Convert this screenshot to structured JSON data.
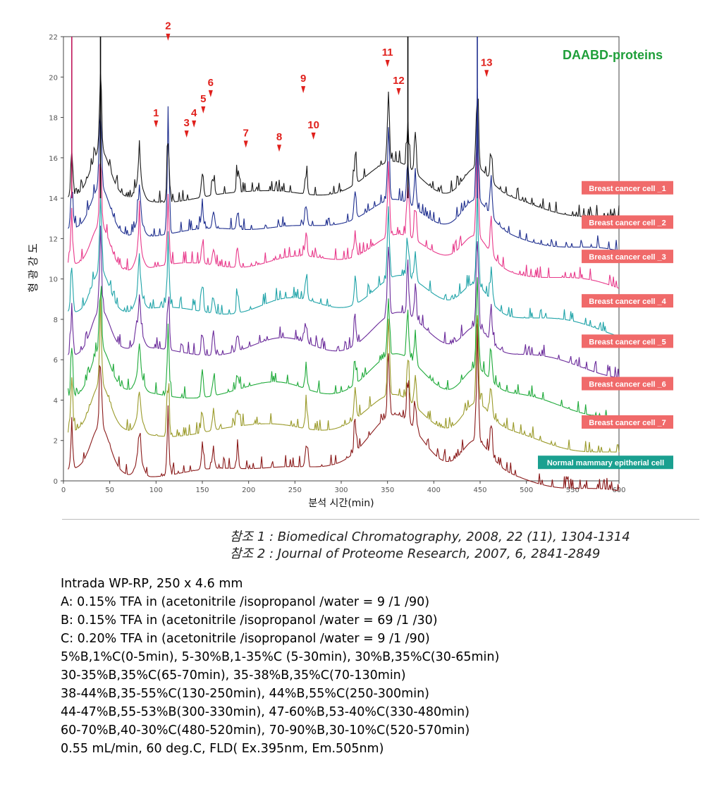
{
  "chart_data": {
    "type": "line",
    "title": "DAABD-proteins",
    "title_color": "#1f9f3a",
    "xlabel": "분석 시간(min)",
    "ylabel": "형 광 강 도",
    "xlim": [
      0,
      600
    ],
    "ylim": [
      0,
      22
    ],
    "x_ticks": [
      0,
      50,
      100,
      150,
      200,
      250,
      300,
      350,
      400,
      450,
      500,
      550,
      600
    ],
    "y_ticks": [
      0,
      2,
      4,
      6,
      8,
      10,
      12,
      14,
      16,
      18,
      20,
      22
    ],
    "grid": false,
    "series": [
      {
        "name": "Breast cancer cell _1",
        "color": "#1a1a1a",
        "baseline": 14.0,
        "label_color": "#f06a6a"
      },
      {
        "name": "Breast cancer cell _2",
        "color": "#1f2f8f",
        "baseline": 12.3,
        "label_color": "#f06a6a"
      },
      {
        "name": "Breast cancer cell _3",
        "color": "#e8388a",
        "baseline": 10.6,
        "label_color": "#f06a6a"
      },
      {
        "name": "Breast cancer cell _4",
        "color": "#1fa3a8",
        "baseline": 8.4,
        "label_color": "#f06a6a"
      },
      {
        "name": "Breast cancer cell _5",
        "color": "#6a2a9a",
        "baseline": 6.4,
        "label_color": "#f06a6a"
      },
      {
        "name": "Breast cancer cell _6",
        "color": "#1faa3a",
        "baseline": 4.3,
        "label_color": "#f06a6a"
      },
      {
        "name": "Breast cancer cell _7",
        "color": "#9a9a2a",
        "baseline": 2.4,
        "label_color": "#f06a6a"
      },
      {
        "name": "Normal mammary epitherial cell",
        "color": "#8a1a1a",
        "baseline": 0.4,
        "label_color": "#1aa090"
      }
    ],
    "peaks": [
      9,
      40,
      82,
      113,
      150,
      162,
      188,
      262,
      315,
      351,
      372,
      380,
      447,
      462
    ],
    "annotations": [
      {
        "label": "1",
        "x": 100,
        "y": 17.5
      },
      {
        "label": "2",
        "x": 113,
        "y": 21.8
      },
      {
        "label": "3",
        "x": 133,
        "y": 17.0
      },
      {
        "label": "4",
        "x": 141,
        "y": 17.5
      },
      {
        "label": "5",
        "x": 151,
        "y": 18.2
      },
      {
        "label": "6",
        "x": 159,
        "y": 19.0
      },
      {
        "label": "7",
        "x": 197,
        "y": 16.5
      },
      {
        "label": "8",
        "x": 233,
        "y": 16.3
      },
      {
        "label": "9",
        "x": 259,
        "y": 19.2
      },
      {
        "label": "10",
        "x": 270,
        "y": 16.9
      },
      {
        "label": "11",
        "x": 350,
        "y": 20.5
      },
      {
        "label": "12",
        "x": 362,
        "y": 19.1
      },
      {
        "label": "13",
        "x": 457,
        "y": 20.0
      }
    ],
    "annotation_color": "#e0201c"
  },
  "references": [
    "참조 1 : Biomedical Chromatography, 2008, 22 (11), 1304-1314",
    "참조 2 : Journal of Proteome Research, 2007, 6, 2841-2849"
  ],
  "conditions": [
    "Intrada WP-RP, 250 x 4.6 mm",
    "A: 0.15% TFA in (acetonitrile /isopropanol /water = 9 /1 /90)",
    "B: 0.15% TFA in (acetonitrile /isopropanol /water = 69 /1 /30)",
    "C: 0.20% TFA in (acetonitrile /isopropanol /water = 9 /1 /90)",
    "5%B,1%C(0-5min), 5-30%B,1-35%C (5-30min), 30%B,35%C(30-65min)",
    "30-35%B,35%C(65-70min), 35-38%B,35%C(70-130min)",
    "38-44%B,35-55%C(130-250min), 44%B,55%C(250-300min)",
    "44-47%B,55-53%B(300-330min), 47-60%B,53-40%C(330-480min)",
    "60-70%B,40-30%C(480-520min), 70-90%B,30-10%C(520-570min)",
    "0.55 mL/min, 60 deg.C, FLD( Ex.395nm, Em.505nm)"
  ]
}
